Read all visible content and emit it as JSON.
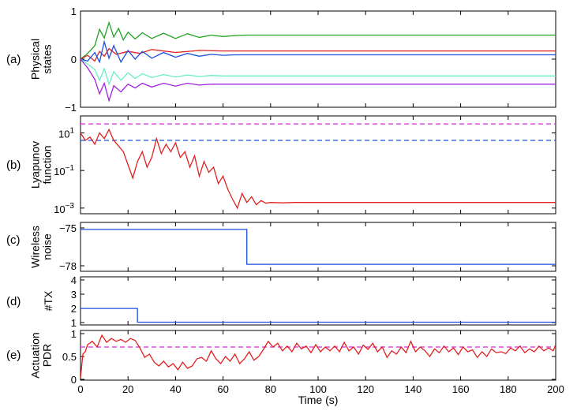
{
  "chart_data": [
    {
      "panel_label": "(a)",
      "type": "line",
      "ylabel": [
        "Physical",
        "states"
      ],
      "ylim": [
        -1,
        1
      ],
      "yticks": [
        "1",
        "0",
        "−1"
      ],
      "series": [
        {
          "color": "#1fa31f",
          "x": [
            0,
            3,
            6,
            8,
            10,
            12,
            14,
            16,
            18,
            20,
            23,
            26,
            30,
            35,
            40,
            45,
            50,
            55,
            60,
            65,
            70,
            200
          ],
          "y": [
            0,
            0.12,
            0.28,
            0.62,
            0.44,
            0.76,
            0.46,
            0.64,
            0.4,
            0.56,
            0.42,
            0.55,
            0.43,
            0.54,
            0.43,
            0.53,
            0.45,
            0.5,
            0.47,
            0.49,
            0.5,
            0.5
          ]
        },
        {
          "color": "#e02020",
          "x": [
            0,
            3,
            6,
            8,
            10,
            12,
            15,
            20,
            25,
            30,
            40,
            50,
            60,
            70,
            200
          ],
          "y": [
            0,
            0.08,
            -0.04,
            0.16,
            0.06,
            0.22,
            0.1,
            0.16,
            0.12,
            0.2,
            0.14,
            0.18,
            0.17,
            0.17,
            0.17
          ]
        },
        {
          "color": "#1a4fe0",
          "x": [
            0,
            3,
            6,
            8,
            10,
            12,
            14,
            17,
            20,
            23,
            26,
            30,
            35,
            40,
            45,
            50,
            55,
            60,
            65,
            200
          ],
          "y": [
            0,
            -0.04,
            0.14,
            -0.06,
            0.36,
            0.02,
            0.28,
            -0.06,
            0.18,
            0.0,
            0.16,
            0.02,
            0.14,
            0.04,
            0.12,
            0.06,
            0.1,
            0.08,
            0.09,
            0.09
          ]
        },
        {
          "color": "#66f0c0",
          "x": [
            0,
            3,
            6,
            8,
            10,
            12,
            14,
            17,
            20,
            23,
            26,
            30,
            35,
            40,
            45,
            50,
            55,
            60,
            65,
            200
          ],
          "y": [
            0,
            -0.1,
            -0.22,
            -0.44,
            -0.2,
            -0.52,
            -0.26,
            -0.44,
            -0.28,
            -0.4,
            -0.3,
            -0.38,
            -0.32,
            -0.37,
            -0.33,
            -0.36,
            -0.34,
            -0.35,
            -0.35,
            -0.35
          ]
        },
        {
          "color": "#a020e0",
          "x": [
            0,
            3,
            6,
            8,
            10,
            12,
            14,
            17,
            20,
            23,
            26,
            30,
            35,
            40,
            45,
            50,
            55,
            60,
            65,
            200
          ],
          "y": [
            0,
            -0.18,
            -0.42,
            -0.72,
            -0.5,
            -0.86,
            -0.55,
            -0.68,
            -0.52,
            -0.6,
            -0.5,
            -0.58,
            -0.5,
            -0.56,
            -0.5,
            -0.54,
            -0.52,
            -0.52,
            -0.52,
            -0.52
          ]
        }
      ]
    },
    {
      "panel_label": "(b)",
      "type": "line",
      "yscale": "log",
      "ylabel": [
        "Lyapunov",
        "function"
      ],
      "ylim": [
        0.0005,
        80
      ],
      "yticks": [
        {
          "value": 10,
          "base": "10",
          "exp": "1"
        },
        {
          "value": 0.1,
          "base": "10",
          "exp": "−1"
        },
        {
          "value": 0.001,
          "base": "10",
          "exp": "−3"
        }
      ],
      "reference_lines": [
        {
          "y": 30,
          "color": "#e020e0",
          "style": "dashed"
        },
        {
          "y": 4,
          "color": "#1a4fe0",
          "style": "dashed"
        }
      ],
      "series": [
        {
          "color": "#e02020",
          "x": [
            0,
            2,
            4,
            6,
            8,
            10,
            12,
            14,
            16,
            18,
            20,
            22,
            24,
            26,
            28,
            30,
            32,
            34,
            36,
            38,
            40,
            42,
            44,
            46,
            48,
            50,
            52,
            54,
            56,
            58,
            60,
            62,
            64,
            66,
            68,
            70,
            72,
            74,
            76,
            78,
            80,
            85,
            90,
            200
          ],
          "y": [
            10,
            4,
            6,
            2.5,
            10,
            5,
            15,
            4,
            2,
            1,
            0.2,
            0.04,
            0.3,
            1,
            0.15,
            0.5,
            5,
            0.8,
            2.5,
            1,
            3,
            0.5,
            1,
            0.15,
            0.6,
            0.05,
            0.3,
            0.08,
            0.15,
            0.02,
            0.05,
            0.01,
            0.003,
            0.001,
            0.006,
            0.002,
            0.004,
            0.0015,
            0.0025,
            0.0018,
            0.002,
            0.0019,
            0.002,
            0.002
          ]
        }
      ]
    },
    {
      "panel_label": "(c)",
      "type": "line",
      "ylabel": [
        "Wireless",
        "noise"
      ],
      "ylim": [
        -78.6,
        -74.4
      ],
      "yticks": [
        "−75",
        "−78"
      ],
      "series": [
        {
          "color": "#1a4fe0",
          "x": [
            0,
            70,
            70,
            200
          ],
          "y": [
            -75,
            -75,
            -78,
            -78
          ]
        }
      ]
    },
    {
      "panel_label": "(d)",
      "type": "line",
      "ylabel": [
        "#TX"
      ],
      "ylim": [
        0.8,
        4.3
      ],
      "yticks": [
        "4",
        "3",
        "2",
        "1"
      ],
      "series": [
        {
          "color": "#1a4fe0",
          "x": [
            0,
            24,
            24,
            200
          ],
          "y": [
            2,
            2,
            1,
            1
          ]
        }
      ]
    },
    {
      "panel_label": "(e)",
      "type": "line",
      "ylabel": [
        "Actuation",
        "PDR"
      ],
      "xlabel": "Time (s)",
      "ylim": [
        0,
        1.05
      ],
      "yticks": [
        "1",
        "0.5",
        "0"
      ],
      "xticks": [
        "0",
        "20",
        "40",
        "60",
        "80",
        "100",
        "120",
        "140",
        "160",
        "180",
        "200"
      ],
      "reference_lines": [
        {
          "y": 0.7,
          "color": "#e020e0",
          "style": "dashed"
        }
      ],
      "series": [
        {
          "color": "#e02020",
          "x": [
            0,
            1,
            2,
            3,
            5,
            7,
            9,
            11,
            13,
            15,
            17,
            19,
            21,
            23,
            25,
            27,
            29,
            31,
            33,
            35,
            37,
            39,
            41,
            43,
            45,
            47,
            49,
            51,
            53,
            55,
            57,
            59,
            61,
            63,
            65,
            67,
            69,
            71,
            73,
            75,
            77,
            79,
            81,
            83,
            85,
            87,
            89,
            91,
            93,
            95,
            97,
            99,
            101,
            103,
            105,
            107,
            109,
            111,
            113,
            115,
            117,
            119,
            121,
            123,
            125,
            127,
            129,
            131,
            133,
            135,
            137,
            139,
            141,
            143,
            145,
            147,
            149,
            151,
            153,
            155,
            157,
            159,
            161,
            163,
            165,
            167,
            169,
            171,
            173,
            175,
            177,
            179,
            181,
            183,
            185,
            187,
            189,
            191,
            193,
            195,
            197,
            199,
            200
          ],
          "y": [
            0.05,
            0.55,
            0.6,
            0.75,
            0.82,
            0.7,
            0.95,
            0.8,
            0.88,
            0.82,
            0.86,
            0.8,
            0.88,
            0.84,
            0.68,
            0.48,
            0.55,
            0.38,
            0.3,
            0.4,
            0.28,
            0.35,
            0.22,
            0.38,
            0.25,
            0.3,
            0.45,
            0.48,
            0.4,
            0.62,
            0.45,
            0.35,
            0.5,
            0.4,
            0.55,
            0.35,
            0.45,
            0.6,
            0.42,
            0.5,
            0.65,
            0.82,
            0.7,
            0.78,
            0.62,
            0.72,
            0.6,
            0.78,
            0.66,
            0.72,
            0.58,
            0.75,
            0.6,
            0.7,
            0.62,
            0.72,
            0.6,
            0.8,
            0.62,
            0.7,
            0.55,
            0.74,
            0.65,
            0.78,
            0.6,
            0.7,
            0.48,
            0.62,
            0.55,
            0.7,
            0.58,
            0.82,
            0.6,
            0.7,
            0.62,
            0.5,
            0.66,
            0.58,
            0.72,
            0.6,
            0.68,
            0.54,
            0.7,
            0.6,
            0.64,
            0.48,
            0.6,
            0.5,
            0.66,
            0.58,
            0.6,
            0.56,
            0.68,
            0.62,
            0.72,
            0.58,
            0.66,
            0.6,
            0.72,
            0.62,
            0.68,
            0.62,
            0.75
          ]
        }
      ]
    }
  ]
}
